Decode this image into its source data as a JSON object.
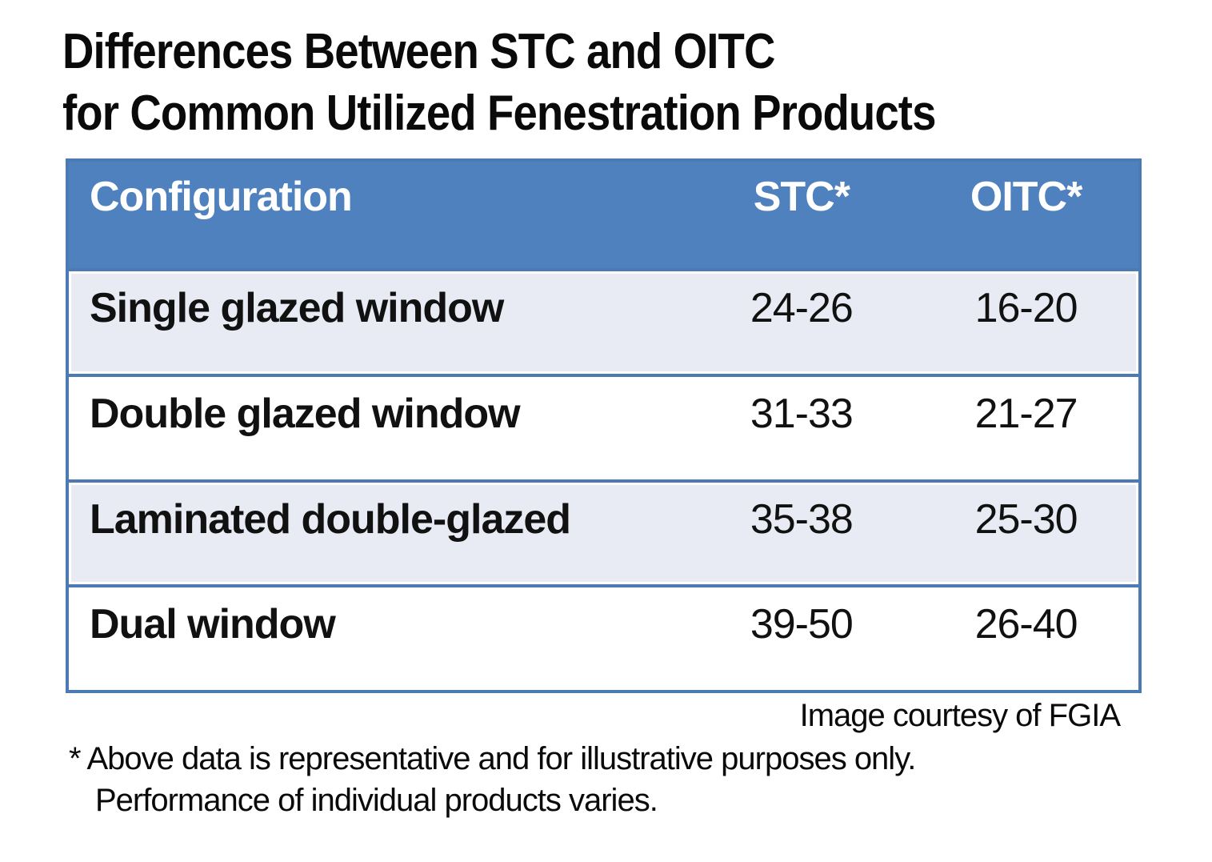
{
  "title": {
    "line1": "Differences Between STC and OITC",
    "line2": "for Common Utilized Fenestration Products"
  },
  "table": {
    "columns": [
      "Configuration",
      "STC*",
      "OITC*"
    ],
    "rows": [
      {
        "configuration": "Single glazed window",
        "stc": "24-26",
        "oitc": "16-20"
      },
      {
        "configuration": "Double glazed window",
        "stc": "31-33",
        "oitc": "21-27"
      },
      {
        "configuration": "Laminated double-glazed",
        "stc": "35-38",
        "oitc": "25-30"
      },
      {
        "configuration": "Dual window",
        "stc": "39-50",
        "oitc": "26-40"
      }
    ]
  },
  "credit": "Image courtesy of FGIA",
  "footnote": {
    "line1": "* Above data is representative and for illustrative purposes only.",
    "line2": "Performance of individual products varies."
  },
  "colors": {
    "header_background": "#4E81BD",
    "table_border": "#4C7AB2",
    "banded_row_background": "#E9EBF4",
    "plain_row_background": "#FFFFFF",
    "header_text": "#FFFFFF",
    "body_text": "#111111"
  },
  "chart_data": {
    "type": "table",
    "title": "Differences Between STC and OITC for Common Utilized Fenestration Products",
    "columns": [
      "Configuration",
      "STC*",
      "OITC*"
    ],
    "rows": [
      [
        "Single glazed window",
        "24-26",
        "16-20"
      ],
      [
        "Double glazed window",
        "31-33",
        "21-27"
      ],
      [
        "Laminated double-glazed",
        "35-38",
        "25-30"
      ],
      [
        "Dual window",
        "39-50",
        "26-40"
      ]
    ],
    "notes": [
      "Image courtesy of FGIA",
      "* Above data is representative and for illustrative purposes only. Performance of individual products varies."
    ]
  }
}
